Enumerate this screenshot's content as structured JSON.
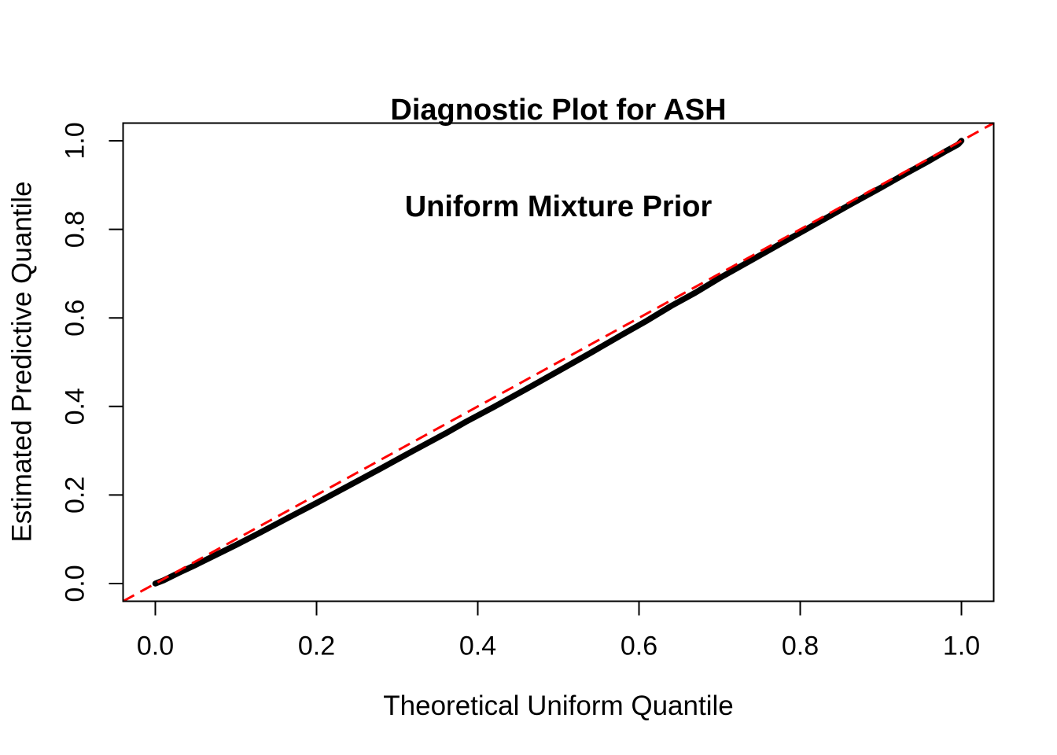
{
  "chart_data": {
    "type": "scatter",
    "title": "Diagnostic Plot for ASH Uniform Mixture Prior",
    "title_lines": [
      "Diagnostic Plot for ASH",
      "Uniform Mixture Prior"
    ],
    "xlabel": "Theoretical Uniform Quantile",
    "ylabel": "Estimated Predictive Quantile",
    "xlim": [
      -0.04,
      1.04
    ],
    "ylim": [
      -0.04,
      1.04
    ],
    "grid": false,
    "legend": null,
    "background_color": "#ffffff",
    "axis_color": "#000000",
    "x_ticks": {
      "values": [
        0.0,
        0.2,
        0.4,
        0.6,
        0.8,
        1.0
      ],
      "labels": [
        "0.0",
        "0.2",
        "0.4",
        "0.6",
        "0.8",
        "1.0"
      ]
    },
    "y_ticks": {
      "values": [
        0.0,
        0.2,
        0.4,
        0.6,
        0.8,
        1.0
      ],
      "labels": [
        "0.0",
        "0.2",
        "0.4",
        "0.6",
        "0.8",
        "1.0"
      ]
    },
    "series": [
      {
        "name": "estimated-predictive-quantiles",
        "kind": "point-band",
        "color": "#000000",
        "stroke_width": 7.5,
        "points": [
          [
            0.0,
            0.0
          ],
          [
            0.01,
            0.007
          ],
          [
            0.03,
            0.025
          ],
          [
            0.05,
            0.042
          ],
          [
            0.08,
            0.069
          ],
          [
            0.1,
            0.087
          ],
          [
            0.13,
            0.115
          ],
          [
            0.16,
            0.144
          ],
          [
            0.2,
            0.182
          ],
          [
            0.24,
            0.221
          ],
          [
            0.28,
            0.26
          ],
          [
            0.32,
            0.3
          ],
          [
            0.36,
            0.339
          ],
          [
            0.385,
            0.365
          ],
          [
            0.42,
            0.399
          ],
          [
            0.46,
            0.439
          ],
          [
            0.5,
            0.48
          ],
          [
            0.54,
            0.521
          ],
          [
            0.58,
            0.563
          ],
          [
            0.61,
            0.594
          ],
          [
            0.64,
            0.627
          ],
          [
            0.67,
            0.657
          ],
          [
            0.7,
            0.69
          ],
          [
            0.74,
            0.731
          ],
          [
            0.78,
            0.772
          ],
          [
            0.82,
            0.813
          ],
          [
            0.86,
            0.854
          ],
          [
            0.9,
            0.894
          ],
          [
            0.93,
            0.925
          ],
          [
            0.96,
            0.955
          ],
          [
            0.98,
            0.976
          ],
          [
            0.99,
            0.986
          ],
          [
            0.996,
            0.992
          ],
          [
            1.0,
            1.0
          ]
        ]
      },
      {
        "name": "identity-reference-line",
        "kind": "line",
        "color": "#FF0000",
        "line_style": "dashed",
        "stroke_width": 3,
        "points": [
          [
            -0.04,
            -0.04
          ],
          [
            1.04,
            1.04
          ]
        ]
      }
    ]
  }
}
